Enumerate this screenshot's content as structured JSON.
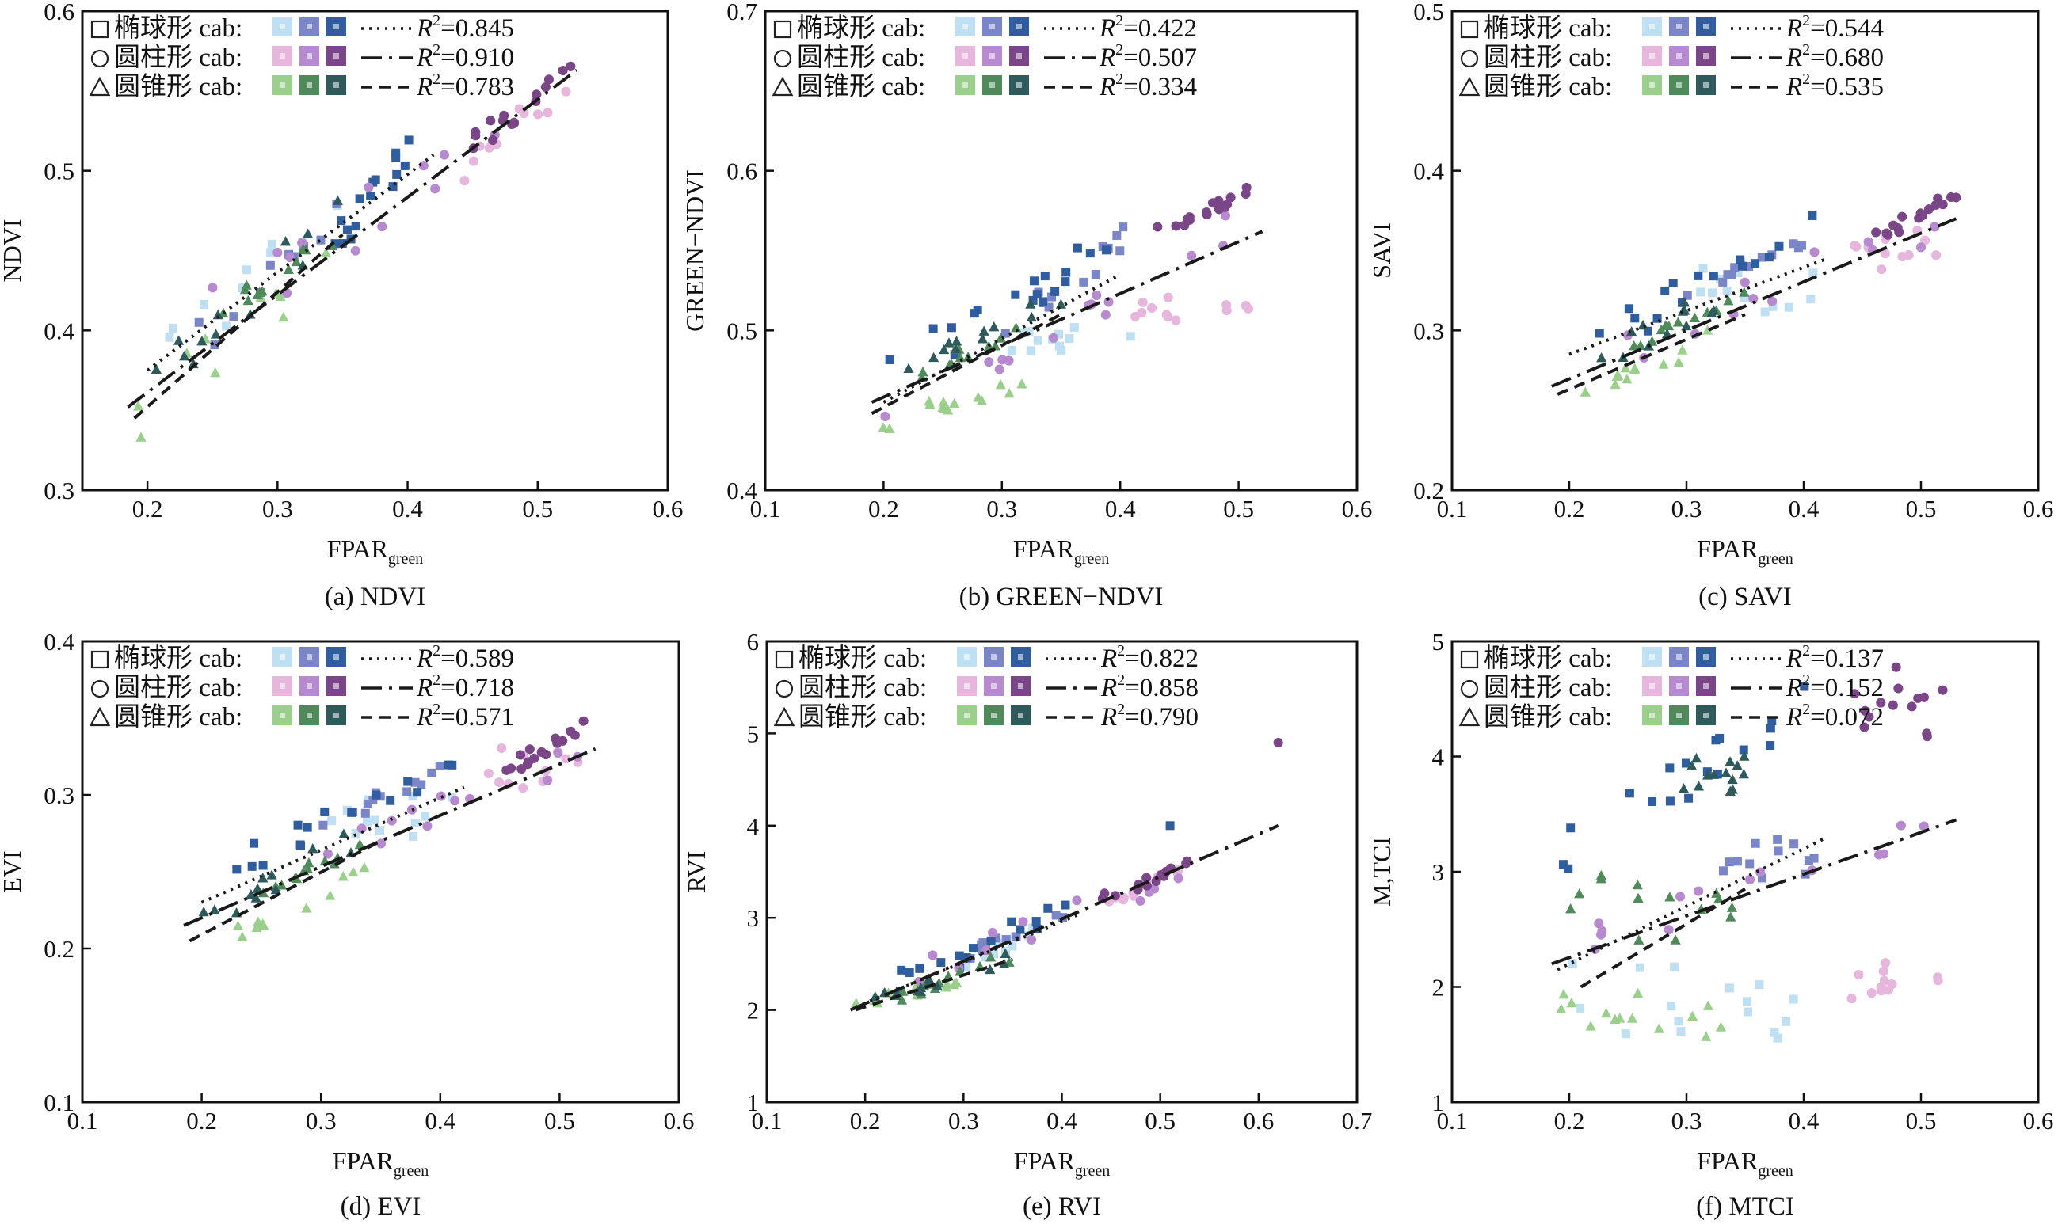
{
  "figure": {
    "x_label_main": "FPAR",
    "x_label_sub": "green",
    "legend_rows": [
      {
        "marker": "square",
        "label": "椭球形 cab:",
        "colors": [
          "#bfe0f2",
          "#7a86c8",
          "#2f5d9e"
        ]
      },
      {
        "marker": "circle",
        "label": "圆柱形 cab:",
        "colors": [
          "#e6b6dc",
          "#b78ad0",
          "#7a4688"
        ]
      },
      {
        "marker": "triangle",
        "label": "圆锥形 cab:",
        "colors": [
          "#9bd08c",
          "#4f8a5a",
          "#2e5a5c"
        ]
      }
    ],
    "line_styles": [
      "dotted",
      "dashdot",
      "dashed"
    ]
  },
  "chart_data": [
    {
      "type": "scatter",
      "id": "a",
      "caption": "(a) NDVI",
      "ylabel": "NDVI",
      "xlim": [
        0.15,
        0.6
      ],
      "ylim": [
        0.3,
        0.6
      ],
      "xticks": [
        0.2,
        0.3,
        0.4,
        0.5,
        0.6
      ],
      "xtick_labels": [
        "0.2",
        "0.3",
        "0.4",
        "0.5",
        "0.6"
      ],
      "yticks": [
        0.3,
        0.4,
        0.5,
        0.6
      ],
      "ytick_labels": [
        "0.3",
        "0.4",
        "0.5",
        "0.6"
      ],
      "r2": [
        "0.845",
        "0.910",
        "0.783"
      ],
      "fits": [
        [
          0.2,
          0.375,
          0.42,
          0.51
        ],
        [
          0.185,
          0.352,
          0.53,
          0.563
        ],
        [
          0.19,
          0.345,
          0.35,
          0.46
        ]
      ],
      "clusters": [
        {
          "s": 0,
          "c": 0,
          "x": [
            0.21,
            0.35
          ],
          "y": [
            0.38,
            0.48
          ],
          "n": 10,
          "trend": true
        },
        {
          "s": 0,
          "c": 1,
          "x": [
            0.22,
            0.35
          ],
          "y": [
            0.38,
            0.47
          ],
          "n": 10,
          "trend": true
        },
        {
          "s": 0,
          "c": 2,
          "x": [
            0.33,
            0.41
          ],
          "y": [
            0.44,
            0.52
          ],
          "n": 16,
          "trend": true
        },
        {
          "s": 1,
          "c": 0,
          "x": [
            0.44,
            0.53
          ],
          "y": [
            0.5,
            0.56
          ],
          "n": 10,
          "trend": true
        },
        {
          "s": 1,
          "c": 1,
          "x": [
            0.25,
            0.48
          ],
          "y": [
            0.41,
            0.53
          ],
          "n": 12,
          "trend": true
        },
        {
          "s": 1,
          "c": 2,
          "x": [
            0.44,
            0.53
          ],
          "y": [
            0.51,
            0.57
          ],
          "n": 16,
          "trend": true
        },
        {
          "s": 2,
          "c": 0,
          "x": [
            0.19,
            0.34
          ],
          "y": [
            0.34,
            0.45
          ],
          "n": 10,
          "trend": true
        },
        {
          "s": 2,
          "c": 1,
          "x": [
            0.25,
            0.35
          ],
          "y": [
            0.41,
            0.46
          ],
          "n": 12,
          "trend": true
        },
        {
          "s": 2,
          "c": 2,
          "x": [
            0.2,
            0.35
          ],
          "y": [
            0.37,
            0.47
          ],
          "n": 12,
          "trend": true
        }
      ]
    },
    {
      "type": "scatter",
      "id": "b",
      "caption": "(b) GREEN−NDVI",
      "ylabel": "GREEN−NDVI",
      "xlim": [
        0.1,
        0.6
      ],
      "ylim": [
        0.4,
        0.7
      ],
      "xticks": [
        0.1,
        0.2,
        0.3,
        0.4,
        0.5,
        0.6
      ],
      "xtick_labels": [
        "0.1",
        "0.2",
        "0.3",
        "0.4",
        "0.5",
        "0.6"
      ],
      "yticks": [
        0.4,
        0.5,
        0.6,
        0.7
      ],
      "ytick_labels": [
        "0.4",
        "0.5",
        "0.6",
        "0.7"
      ],
      "r2": [
        "0.422",
        "0.507",
        "0.334"
      ],
      "fits": [
        [
          0.2,
          0.455,
          0.4,
          0.535
        ],
        [
          0.19,
          0.455,
          0.52,
          0.562
        ],
        [
          0.19,
          0.448,
          0.35,
          0.51
        ]
      ],
      "clusters": [
        {
          "s": 0,
          "c": 0,
          "x": [
            0.3,
            0.41
          ],
          "y": [
            0.485,
            0.5
          ],
          "n": 12,
          "trend": false
        },
        {
          "s": 0,
          "c": 1,
          "x": [
            0.3,
            0.41
          ],
          "y": [
            0.5,
            0.56
          ],
          "n": 12,
          "trend": true
        },
        {
          "s": 0,
          "c": 2,
          "x": [
            0.2,
            0.41
          ],
          "y": [
            0.47,
            0.565
          ],
          "n": 18,
          "trend": true
        },
        {
          "s": 1,
          "c": 0,
          "x": [
            0.41,
            0.51
          ],
          "y": [
            0.505,
            0.52
          ],
          "n": 12,
          "trend": false
        },
        {
          "s": 1,
          "c": 1,
          "x": [
            0.2,
            0.5
          ],
          "y": [
            0.45,
            0.56
          ],
          "n": 14,
          "trend": true
        },
        {
          "s": 1,
          "c": 2,
          "x": [
            0.43,
            0.52
          ],
          "y": [
            0.56,
            0.59
          ],
          "n": 16,
          "trend": true
        },
        {
          "s": 2,
          "c": 0,
          "x": [
            0.19,
            0.35
          ],
          "y": [
            0.44,
            0.475
          ],
          "n": 14,
          "trend": true
        },
        {
          "s": 2,
          "c": 1,
          "x": [
            0.22,
            0.35
          ],
          "y": [
            0.47,
            0.51
          ],
          "n": 12,
          "trend": true
        },
        {
          "s": 2,
          "c": 2,
          "x": [
            0.22,
            0.35
          ],
          "y": [
            0.48,
            0.52
          ],
          "n": 12,
          "trend": true
        }
      ]
    },
    {
      "type": "scatter",
      "id": "c",
      "caption": "(c) SAVI",
      "ylabel": "SAVI",
      "xlim": [
        0.1,
        0.6
      ],
      "ylim": [
        0.2,
        0.5
      ],
      "xticks": [
        0.1,
        0.2,
        0.3,
        0.4,
        0.5,
        0.6
      ],
      "xtick_labels": [
        "0.1",
        "0.2",
        "0.3",
        "0.4",
        "0.5",
        "0.6"
      ],
      "yticks": [
        0.2,
        0.3,
        0.4,
        0.5
      ],
      "ytick_labels": [
        "0.2",
        "0.3",
        "0.4",
        "0.5"
      ],
      "r2": [
        "0.544",
        "0.680",
        "0.535"
      ],
      "fits": [
        [
          0.2,
          0.285,
          0.42,
          0.345
        ],
        [
          0.185,
          0.265,
          0.53,
          0.37
        ],
        [
          0.19,
          0.26,
          0.35,
          0.31
        ]
      ],
      "clusters": [
        {
          "s": 0,
          "c": 0,
          "x": [
            0.3,
            0.41
          ],
          "y": [
            0.31,
            0.34
          ],
          "n": 12,
          "trend": false
        },
        {
          "s": 0,
          "c": 1,
          "x": [
            0.3,
            0.41
          ],
          "y": [
            0.32,
            0.36
          ],
          "n": 12,
          "trend": true
        },
        {
          "s": 0,
          "c": 2,
          "x": [
            0.22,
            0.41
          ],
          "y": [
            0.29,
            0.37
          ],
          "n": 16,
          "trend": true
        },
        {
          "s": 1,
          "c": 0,
          "x": [
            0.44,
            0.52
          ],
          "y": [
            0.34,
            0.37
          ],
          "n": 12,
          "trend": false
        },
        {
          "s": 1,
          "c": 1,
          "x": [
            0.25,
            0.52
          ],
          "y": [
            0.29,
            0.37
          ],
          "n": 12,
          "trend": true
        },
        {
          "s": 1,
          "c": 2,
          "x": [
            0.44,
            0.53
          ],
          "y": [
            0.35,
            0.385
          ],
          "n": 16,
          "trend": true
        },
        {
          "s": 2,
          "c": 0,
          "x": [
            0.19,
            0.34
          ],
          "y": [
            0.255,
            0.3
          ],
          "n": 12,
          "trend": true
        },
        {
          "s": 2,
          "c": 1,
          "x": [
            0.25,
            0.35
          ],
          "y": [
            0.29,
            0.32
          ],
          "n": 12,
          "trend": true
        },
        {
          "s": 2,
          "c": 2,
          "x": [
            0.2,
            0.35
          ],
          "y": [
            0.27,
            0.33
          ],
          "n": 12,
          "trend": true
        }
      ]
    },
    {
      "type": "scatter",
      "id": "d",
      "caption": "(d) EVI",
      "ylabel": "EVI",
      "xlim": [
        0.1,
        0.6
      ],
      "ylim": [
        0.1,
        0.4
      ],
      "xticks": [
        0.1,
        0.2,
        0.3,
        0.4,
        0.5,
        0.6
      ],
      "xtick_labels": [
        "0.1",
        "0.2",
        "0.3",
        "0.4",
        "0.5",
        "0.6"
      ],
      "yticks": [
        0.1,
        0.2,
        0.3,
        0.4
      ],
      "ytick_labels": [
        "0.1",
        "0.2",
        "0.3",
        "0.4"
      ],
      "r2": [
        "0.589",
        "0.718",
        "0.571"
      ],
      "fits": [
        [
          0.2,
          0.23,
          0.42,
          0.305
        ],
        [
          0.185,
          0.215,
          0.53,
          0.33
        ],
        [
          0.19,
          0.205,
          0.35,
          0.27
        ]
      ],
      "clusters": [
        {
          "s": 0,
          "c": 0,
          "x": [
            0.3,
            0.41
          ],
          "y": [
            0.27,
            0.3
          ],
          "n": 12,
          "trend": false
        },
        {
          "s": 0,
          "c": 1,
          "x": [
            0.3,
            0.41
          ],
          "y": [
            0.28,
            0.32
          ],
          "n": 12,
          "trend": true
        },
        {
          "s": 0,
          "c": 2,
          "x": [
            0.22,
            0.41
          ],
          "y": [
            0.25,
            0.32
          ],
          "n": 16,
          "trend": true
        },
        {
          "s": 1,
          "c": 0,
          "x": [
            0.44,
            0.52
          ],
          "y": [
            0.3,
            0.33
          ],
          "n": 12,
          "trend": false
        },
        {
          "s": 1,
          "c": 1,
          "x": [
            0.25,
            0.52
          ],
          "y": [
            0.25,
            0.33
          ],
          "n": 12,
          "trend": true
        },
        {
          "s": 1,
          "c": 2,
          "x": [
            0.44,
            0.53
          ],
          "y": [
            0.31,
            0.35
          ],
          "n": 16,
          "trend": true
        },
        {
          "s": 2,
          "c": 0,
          "x": [
            0.19,
            0.34
          ],
          "y": [
            0.2,
            0.25
          ],
          "n": 12,
          "trend": true
        },
        {
          "s": 2,
          "c": 1,
          "x": [
            0.25,
            0.35
          ],
          "y": [
            0.24,
            0.27
          ],
          "n": 12,
          "trend": true
        },
        {
          "s": 2,
          "c": 2,
          "x": [
            0.2,
            0.35
          ],
          "y": [
            0.22,
            0.28
          ],
          "n": 12,
          "trend": true
        }
      ]
    },
    {
      "type": "scatter",
      "id": "e",
      "caption": "(e) RVI",
      "ylabel": "RVI",
      "xlim": [
        0.1,
        0.7
      ],
      "ylim": [
        1,
        6
      ],
      "xticks": [
        0.1,
        0.2,
        0.3,
        0.4,
        0.5,
        0.6,
        0.7
      ],
      "xtick_labels": [
        "0.1",
        "0.2",
        "0.3",
        "0.4",
        "0.5",
        "0.6",
        "0.7"
      ],
      "yticks": [
        1,
        2,
        3,
        4,
        5,
        6
      ],
      "ytick_labels": [
        "1",
        "2",
        "3",
        "4",
        "5",
        "6"
      ],
      "r2": [
        "0.822",
        "0.858",
        "0.790"
      ],
      "fits": [
        [
          0.19,
          2.03,
          0.42,
          3.05
        ],
        [
          0.185,
          2.0,
          0.62,
          4.0
        ],
        [
          0.19,
          2.0,
          0.35,
          2.55
        ]
      ],
      "clusters": [
        {
          "s": 0,
          "c": 0,
          "x": [
            0.3,
            0.41
          ],
          "y": [
            2.5,
            3.0
          ],
          "n": 10,
          "trend": true
        },
        {
          "s": 0,
          "c": 1,
          "x": [
            0.3,
            0.41
          ],
          "y": [
            2.6,
            3.1
          ],
          "n": 12,
          "trend": true
        },
        {
          "s": 0,
          "c": 2,
          "x": [
            0.22,
            0.41
          ],
          "y": [
            2.2,
            3.2
          ],
          "n": 16,
          "trend": true
        },
        {
          "s": 1,
          "c": 0,
          "x": [
            0.44,
            0.52
          ],
          "y": [
            3.1,
            3.5
          ],
          "n": 12,
          "trend": true
        },
        {
          "s": 1,
          "c": 1,
          "x": [
            0.25,
            0.52
          ],
          "y": [
            2.4,
            3.5
          ],
          "n": 12,
          "trend": true
        },
        {
          "s": 1,
          "c": 2,
          "x": [
            0.44,
            0.53
          ],
          "y": [
            3.2,
            3.6
          ],
          "n": 14,
          "trend": true
        },
        {
          "s": 2,
          "c": 0,
          "x": [
            0.19,
            0.34
          ],
          "y": [
            2.0,
            2.5
          ],
          "n": 12,
          "trend": true
        },
        {
          "s": 2,
          "c": 1,
          "x": [
            0.22,
            0.35
          ],
          "y": [
            2.1,
            2.6
          ],
          "n": 12,
          "trend": true
        },
        {
          "s": 2,
          "c": 2,
          "x": [
            0.2,
            0.35
          ],
          "y": [
            2.05,
            2.6
          ],
          "n": 12,
          "trend": true
        }
      ],
      "points": [
        {
          "x": 0.62,
          "y": 4.9,
          "s": 1,
          "c": 2
        },
        {
          "x": 0.51,
          "y": 4.0,
          "s": 0,
          "c": 2
        }
      ]
    },
    {
      "type": "scatter",
      "id": "f",
      "caption": "(f) MTCI",
      "ylabel": "M,TCI",
      "xlim": [
        0.1,
        0.6
      ],
      "ylim": [
        1,
        5
      ],
      "xticks": [
        0.1,
        0.2,
        0.3,
        0.4,
        0.5,
        0.6
      ],
      "xtick_labels": [
        "0.1",
        "0.2",
        "0.3",
        "0.4",
        "0.5",
        "0.6"
      ],
      "yticks": [
        1,
        2,
        3,
        4,
        5
      ],
      "ytick_labels": [
        "1",
        "2",
        "3",
        "4",
        "5"
      ],
      "r2": [
        "0.137",
        "0.152",
        "0.072"
      ],
      "fits": [
        [
          0.19,
          2.15,
          0.42,
          3.3
        ],
        [
          0.185,
          2.2,
          0.53,
          3.45
        ],
        [
          0.21,
          2.0,
          0.35,
          2.85
        ]
      ],
      "clusters": [
        {
          "s": 0,
          "c": 0,
          "x": [
            0.2,
            0.41
          ],
          "y": [
            1.5,
            2.2
          ],
          "n": 16,
          "trend": false
        },
        {
          "s": 0,
          "c": 1,
          "x": [
            0.33,
            0.41
          ],
          "y": [
            2.9,
            3.3
          ],
          "n": 12,
          "trend": false
        },
        {
          "s": 0,
          "c": 2,
          "x": [
            0.19,
            0.41
          ],
          "y": [
            3.1,
            4.5
          ],
          "n": 18,
          "trend": true
        },
        {
          "s": 1,
          "c": 0,
          "x": [
            0.44,
            0.52
          ],
          "y": [
            1.9,
            2.2
          ],
          "n": 12,
          "trend": false
        },
        {
          "s": 1,
          "c": 1,
          "x": [
            0.22,
            0.52
          ],
          "y": [
            2.4,
            3.5
          ],
          "n": 14,
          "trend": true
        },
        {
          "s": 1,
          "c": 2,
          "x": [
            0.44,
            0.53
          ],
          "y": [
            4.2,
            4.75
          ],
          "n": 14,
          "trend": false
        },
        {
          "s": 2,
          "c": 0,
          "x": [
            0.19,
            0.34
          ],
          "y": [
            1.6,
            2.0
          ],
          "n": 14,
          "trend": false
        },
        {
          "s": 2,
          "c": 1,
          "x": [
            0.19,
            0.34
          ],
          "y": [
            2.4,
            3.0
          ],
          "n": 14,
          "trend": false
        },
        {
          "s": 2,
          "c": 2,
          "x": [
            0.29,
            0.35
          ],
          "y": [
            3.7,
            4.0
          ],
          "n": 14,
          "trend": false
        }
      ]
    }
  ]
}
